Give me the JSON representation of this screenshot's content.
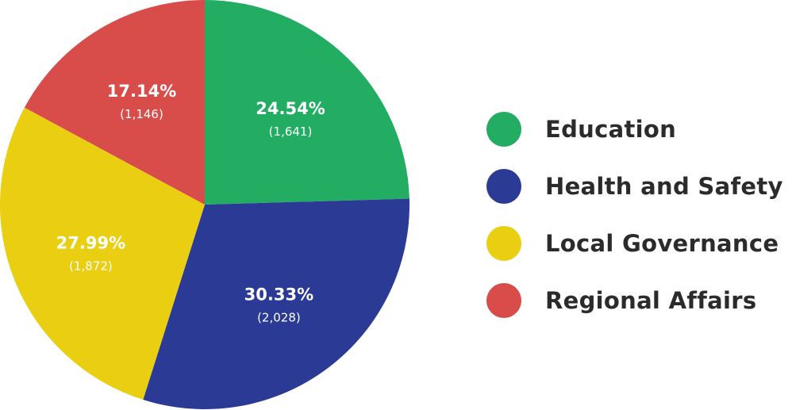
{
  "chart_data": {
    "type": "pie",
    "slices": [
      {
        "label": "Education",
        "percent_label": "24.54%",
        "count_label": "(1,641)",
        "value": 1641,
        "percent": 24.54,
        "color": "#22ad63"
      },
      {
        "label": "Health and Safety",
        "percent_label": "30.33%",
        "count_label": "(2,028)",
        "value": 2028,
        "percent": 30.33,
        "color": "#2b3a94"
      },
      {
        "label": "Local Governance",
        "percent_label": "27.99%",
        "count_label": "(1,872)",
        "value": 1872,
        "percent": 27.99,
        "color": "#eace12"
      },
      {
        "label": "Regional Affairs",
        "percent_label": "17.14%",
        "count_label": "(1,146)",
        "value": 1146,
        "percent": 17.14,
        "color": "#d84d4a"
      }
    ],
    "start": "12 o'clock",
    "direction": "clockwise",
    "legend_position": "right"
  }
}
